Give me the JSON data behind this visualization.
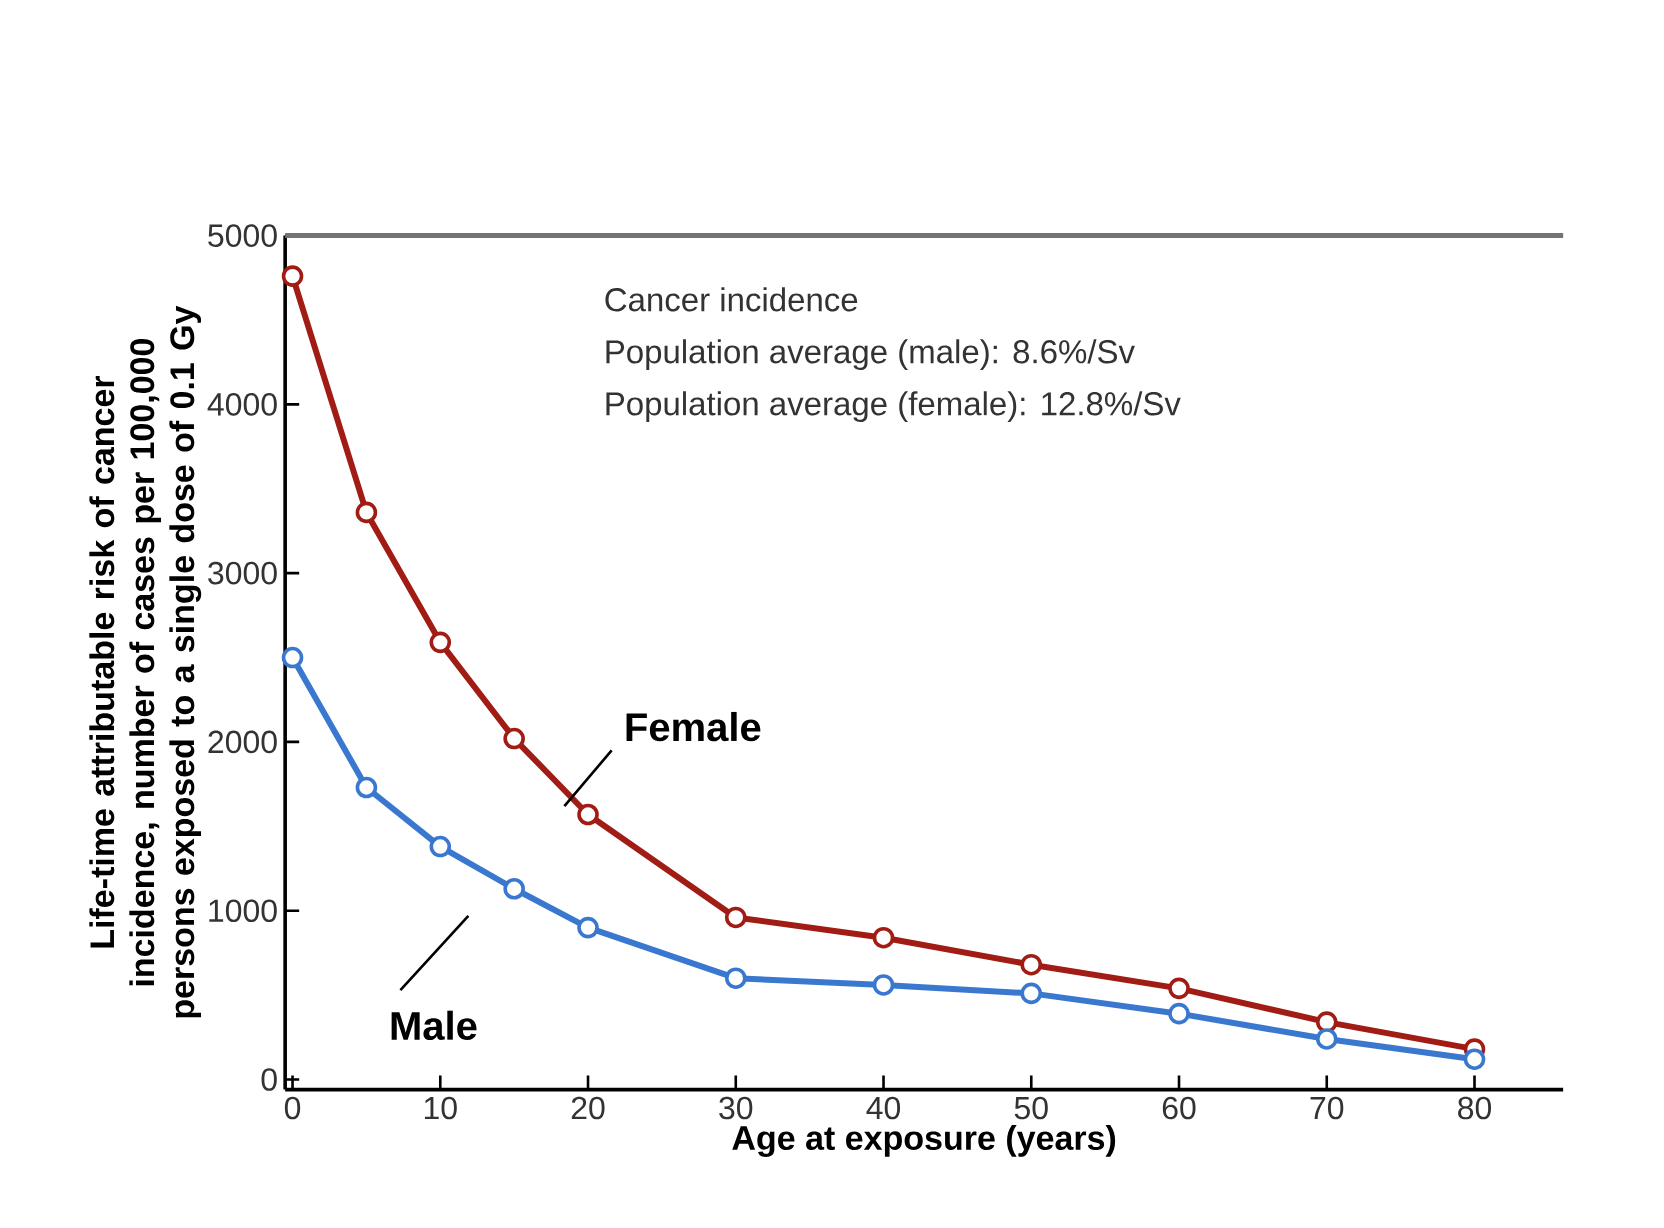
{
  "chart_data": {
    "type": "line",
    "xlabel": "Age at exposure (years)",
    "ylabel": "Life-time attributable risk of cancer incidence, number of cases per 100,000 persons exposed to a single dose of 0.1 Gy",
    "x": [
      0,
      5,
      10,
      15,
      20,
      30,
      40,
      50,
      60,
      70,
      80
    ],
    "series": [
      {
        "name": "Female",
        "color": "#a01c14",
        "values": [
          4760,
          3360,
          2590,
          2020,
          1570,
          960,
          840,
          680,
          540,
          340,
          180
        ]
      },
      {
        "name": "Male",
        "color": "#3a78d0",
        "values": [
          2500,
          1730,
          1380,
          1130,
          900,
          600,
          560,
          510,
          390,
          240,
          120
        ]
      }
    ],
    "xlim": [
      -0.5,
      86
    ],
    "ylim": [
      -60,
      5000
    ],
    "xticks": [
      0,
      10,
      20,
      30,
      40,
      50,
      60,
      70,
      80
    ],
    "yticks": [
      0,
      1000,
      2000,
      3000,
      4000,
      5000
    ],
    "marker": "circle",
    "line_style": "solid",
    "annotations": [
      "Cancer incidence",
      "Population average (male): 8.6%/Sv",
      "Population average (female): 12.8%/Sv"
    ]
  }
}
